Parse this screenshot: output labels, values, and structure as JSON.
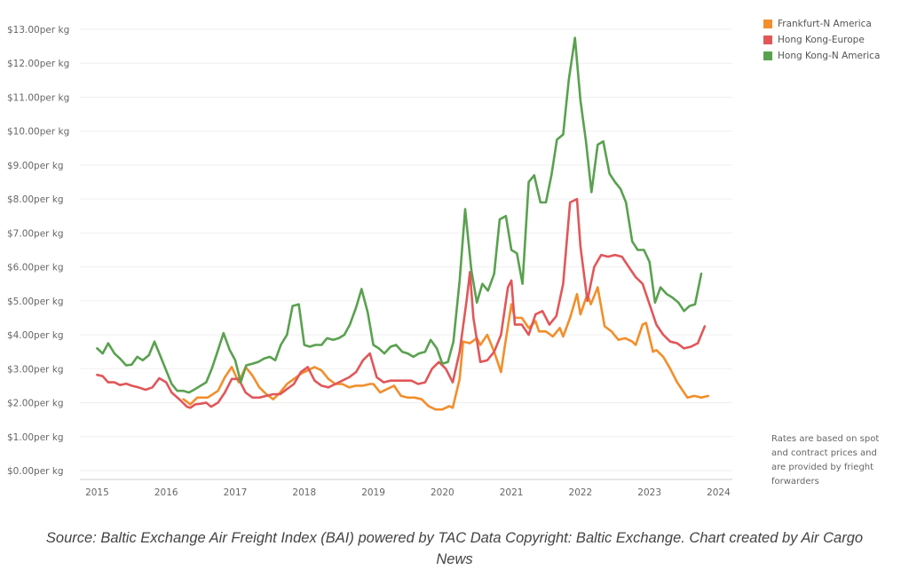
{
  "chart_data": {
    "type": "line",
    "title": "",
    "xlabel": "",
    "ylabel": "",
    "xlim": [
      2014.75,
      2024.2
    ],
    "ylim": [
      0,
      13
    ],
    "grid": true,
    "legend_position": "top-right",
    "x_ticks": [
      "2015",
      "2016",
      "2017",
      "2018",
      "2019",
      "2020",
      "2021",
      "2022",
      "2023",
      "2024"
    ],
    "y_ticks": [
      "$0.00per kg",
      "$1.00per kg",
      "$2.00per kg",
      "$3.00per kg",
      "$4.00per kg",
      "$5.00per kg",
      "$6.00per kg",
      "$7.00per kg",
      "$8.00per kg",
      "$9.00per kg",
      "$10.00per kg",
      "$11.00per kg",
      "$12.00per kg",
      "$13.00per kg"
    ],
    "series": [
      {
        "name": "Frankfurt-N America",
        "color": "#f28e2b",
        "points": [
          [
            2016.25,
            2.1
          ],
          [
            2016.35,
            1.95
          ],
          [
            2016.45,
            2.15
          ],
          [
            2016.6,
            2.15
          ],
          [
            2016.75,
            2.35
          ],
          [
            2016.85,
            2.75
          ],
          [
            2016.95,
            3.05
          ],
          [
            2017.05,
            2.6
          ],
          [
            2017.15,
            3.05
          ],
          [
            2017.25,
            2.8
          ],
          [
            2017.35,
            2.45
          ],
          [
            2017.45,
            2.25
          ],
          [
            2017.55,
            2.1
          ],
          [
            2017.65,
            2.3
          ],
          [
            2017.75,
            2.55
          ],
          [
            2017.85,
            2.7
          ],
          [
            2017.95,
            2.85
          ],
          [
            2018.05,
            2.95
          ],
          [
            2018.15,
            3.05
          ],
          [
            2018.25,
            2.95
          ],
          [
            2018.35,
            2.7
          ],
          [
            2018.45,
            2.55
          ],
          [
            2018.55,
            2.55
          ],
          [
            2018.65,
            2.45
          ],
          [
            2018.75,
            2.5
          ],
          [
            2018.85,
            2.5
          ],
          [
            2018.95,
            2.55
          ],
          [
            2019.0,
            2.55
          ],
          [
            2019.1,
            2.3
          ],
          [
            2019.2,
            2.4
          ],
          [
            2019.3,
            2.5
          ],
          [
            2019.4,
            2.2
          ],
          [
            2019.5,
            2.15
          ],
          [
            2019.6,
            2.15
          ],
          [
            2019.7,
            2.1
          ],
          [
            2019.8,
            1.9
          ],
          [
            2019.9,
            1.8
          ],
          [
            2020.0,
            1.8
          ],
          [
            2020.1,
            1.9
          ],
          [
            2020.15,
            1.85
          ],
          [
            2020.25,
            2.7
          ],
          [
            2020.3,
            3.8
          ],
          [
            2020.4,
            3.75
          ],
          [
            2020.5,
            3.9
          ],
          [
            2020.55,
            3.7
          ],
          [
            2020.65,
            4.0
          ],
          [
            2020.75,
            3.5
          ],
          [
            2020.85,
            2.9
          ],
          [
            2020.9,
            3.6
          ],
          [
            2021.0,
            4.9
          ],
          [
            2021.05,
            4.5
          ],
          [
            2021.15,
            4.5
          ],
          [
            2021.25,
            4.2
          ],
          [
            2021.35,
            4.4
          ],
          [
            2021.4,
            4.1
          ],
          [
            2021.5,
            4.1
          ],
          [
            2021.6,
            3.95
          ],
          [
            2021.7,
            4.2
          ],
          [
            2021.75,
            3.95
          ],
          [
            2021.85,
            4.5
          ],
          [
            2021.95,
            5.2
          ],
          [
            2022.0,
            4.6
          ],
          [
            2022.1,
            5.2
          ],
          [
            2022.15,
            4.9
          ],
          [
            2022.25,
            5.4
          ],
          [
            2022.35,
            4.25
          ],
          [
            2022.45,
            4.1
          ],
          [
            2022.55,
            3.85
          ],
          [
            2022.65,
            3.9
          ],
          [
            2022.75,
            3.8
          ],
          [
            2022.8,
            3.7
          ],
          [
            2022.9,
            4.3
          ],
          [
            2022.95,
            4.35
          ],
          [
            2023.05,
            3.5
          ],
          [
            2023.1,
            3.55
          ],
          [
            2023.2,
            3.35
          ],
          [
            2023.3,
            3.0
          ],
          [
            2023.4,
            2.6
          ],
          [
            2023.5,
            2.3
          ],
          [
            2023.55,
            2.15
          ],
          [
            2023.65,
            2.2
          ],
          [
            2023.75,
            2.15
          ],
          [
            2023.85,
            2.2
          ]
        ]
      },
      {
        "name": "Hong Kong-Europe",
        "color": "#e15759",
        "points": [
          [
            2015.0,
            2.82
          ],
          [
            2015.08,
            2.78
          ],
          [
            2015.16,
            2.6
          ],
          [
            2015.25,
            2.6
          ],
          [
            2015.33,
            2.52
          ],
          [
            2015.42,
            2.56
          ],
          [
            2015.5,
            2.5
          ],
          [
            2015.6,
            2.45
          ],
          [
            2015.7,
            2.38
          ],
          [
            2015.8,
            2.45
          ],
          [
            2015.9,
            2.72
          ],
          [
            2016.0,
            2.6
          ],
          [
            2016.08,
            2.3
          ],
          [
            2016.2,
            2.08
          ],
          [
            2016.3,
            1.88
          ],
          [
            2016.35,
            1.85
          ],
          [
            2016.42,
            1.95
          ],
          [
            2016.5,
            1.97
          ],
          [
            2016.58,
            2.0
          ],
          [
            2016.65,
            1.88
          ],
          [
            2016.75,
            2.0
          ],
          [
            2016.85,
            2.3
          ],
          [
            2016.95,
            2.7
          ],
          [
            2017.05,
            2.7
          ],
          [
            2017.15,
            2.3
          ],
          [
            2017.25,
            2.15
          ],
          [
            2017.35,
            2.15
          ],
          [
            2017.45,
            2.2
          ],
          [
            2017.55,
            2.25
          ],
          [
            2017.65,
            2.25
          ],
          [
            2017.75,
            2.4
          ],
          [
            2017.85,
            2.55
          ],
          [
            2017.95,
            2.9
          ],
          [
            2018.05,
            3.05
          ],
          [
            2018.15,
            2.65
          ],
          [
            2018.25,
            2.5
          ],
          [
            2018.35,
            2.45
          ],
          [
            2018.45,
            2.55
          ],
          [
            2018.55,
            2.65
          ],
          [
            2018.65,
            2.75
          ],
          [
            2018.75,
            2.9
          ],
          [
            2018.85,
            3.25
          ],
          [
            2018.95,
            3.45
          ],
          [
            2019.05,
            2.75
          ],
          [
            2019.15,
            2.6
          ],
          [
            2019.25,
            2.65
          ],
          [
            2019.35,
            2.65
          ],
          [
            2019.45,
            2.65
          ],
          [
            2019.55,
            2.65
          ],
          [
            2019.65,
            2.55
          ],
          [
            2019.75,
            2.6
          ],
          [
            2019.85,
            3.0
          ],
          [
            2019.95,
            3.2
          ],
          [
            2020.05,
            3.0
          ],
          [
            2020.15,
            2.6
          ],
          [
            2020.25,
            3.5
          ],
          [
            2020.35,
            5.0
          ],
          [
            2020.4,
            5.85
          ],
          [
            2020.45,
            4.5
          ],
          [
            2020.55,
            3.2
          ],
          [
            2020.65,
            3.25
          ],
          [
            2020.75,
            3.5
          ],
          [
            2020.85,
            4.0
          ],
          [
            2020.95,
            5.4
          ],
          [
            2021.0,
            5.6
          ],
          [
            2021.05,
            4.3
          ],
          [
            2021.15,
            4.3
          ],
          [
            2021.25,
            4.0
          ],
          [
            2021.35,
            4.6
          ],
          [
            2021.45,
            4.7
          ],
          [
            2021.55,
            4.3
          ],
          [
            2021.65,
            4.55
          ],
          [
            2021.75,
            5.5
          ],
          [
            2021.85,
            7.9
          ],
          [
            2021.95,
            8.0
          ],
          [
            2022.0,
            6.6
          ],
          [
            2022.1,
            5.0
          ],
          [
            2022.2,
            6.0
          ],
          [
            2022.3,
            6.35
          ],
          [
            2022.4,
            6.3
          ],
          [
            2022.5,
            6.35
          ],
          [
            2022.6,
            6.3
          ],
          [
            2022.7,
            6.0
          ],
          [
            2022.8,
            5.7
          ],
          [
            2022.9,
            5.5
          ],
          [
            2023.0,
            4.9
          ],
          [
            2023.1,
            4.3
          ],
          [
            2023.2,
            4.0
          ],
          [
            2023.3,
            3.8
          ],
          [
            2023.4,
            3.75
          ],
          [
            2023.5,
            3.6
          ],
          [
            2023.6,
            3.65
          ],
          [
            2023.7,
            3.75
          ],
          [
            2023.8,
            4.25
          ]
        ]
      },
      {
        "name": "Hong Kong-N America",
        "color": "#59a14f",
        "points": [
          [
            2015.0,
            3.6
          ],
          [
            2015.08,
            3.45
          ],
          [
            2015.16,
            3.75
          ],
          [
            2015.25,
            3.45
          ],
          [
            2015.33,
            3.3
          ],
          [
            2015.42,
            3.1
          ],
          [
            2015.5,
            3.12
          ],
          [
            2015.58,
            3.35
          ],
          [
            2015.66,
            3.25
          ],
          [
            2015.75,
            3.4
          ],
          [
            2015.83,
            3.8
          ],
          [
            2015.92,
            3.35
          ],
          [
            2016.0,
            2.95
          ],
          [
            2016.08,
            2.55
          ],
          [
            2016.16,
            2.35
          ],
          [
            2016.25,
            2.35
          ],
          [
            2016.33,
            2.3
          ],
          [
            2016.42,
            2.4
          ],
          [
            2016.5,
            2.5
          ],
          [
            2016.58,
            2.6
          ],
          [
            2016.66,
            3.0
          ],
          [
            2016.75,
            3.55
          ],
          [
            2016.83,
            4.05
          ],
          [
            2016.92,
            3.55
          ],
          [
            2017.0,
            3.25
          ],
          [
            2017.08,
            2.6
          ],
          [
            2017.16,
            3.1
          ],
          [
            2017.25,
            3.15
          ],
          [
            2017.33,
            3.2
          ],
          [
            2017.42,
            3.3
          ],
          [
            2017.5,
            3.35
          ],
          [
            2017.58,
            3.25
          ],
          [
            2017.66,
            3.7
          ],
          [
            2017.75,
            4.0
          ],
          [
            2017.83,
            4.85
          ],
          [
            2017.92,
            4.9
          ],
          [
            2018.0,
            3.7
          ],
          [
            2018.08,
            3.65
          ],
          [
            2018.16,
            3.7
          ],
          [
            2018.25,
            3.7
          ],
          [
            2018.33,
            3.9
          ],
          [
            2018.42,
            3.85
          ],
          [
            2018.5,
            3.9
          ],
          [
            2018.58,
            4.0
          ],
          [
            2018.66,
            4.3
          ],
          [
            2018.75,
            4.8
          ],
          [
            2018.83,
            5.35
          ],
          [
            2018.92,
            4.65
          ],
          [
            2019.0,
            3.7
          ],
          [
            2019.08,
            3.6
          ],
          [
            2019.16,
            3.45
          ],
          [
            2019.25,
            3.65
          ],
          [
            2019.33,
            3.7
          ],
          [
            2019.42,
            3.5
          ],
          [
            2019.5,
            3.45
          ],
          [
            2019.58,
            3.35
          ],
          [
            2019.66,
            3.45
          ],
          [
            2019.75,
            3.5
          ],
          [
            2019.83,
            3.85
          ],
          [
            2019.92,
            3.6
          ],
          [
            2020.0,
            3.15
          ],
          [
            2020.08,
            3.2
          ],
          [
            2020.16,
            3.8
          ],
          [
            2020.25,
            5.6
          ],
          [
            2020.33,
            7.7
          ],
          [
            2020.42,
            5.9
          ],
          [
            2020.5,
            4.95
          ],
          [
            2020.58,
            5.5
          ],
          [
            2020.66,
            5.3
          ],
          [
            2020.75,
            5.8
          ],
          [
            2020.83,
            7.4
          ],
          [
            2020.92,
            7.5
          ],
          [
            2021.0,
            6.5
          ],
          [
            2021.08,
            6.4
          ],
          [
            2021.16,
            5.5
          ],
          [
            2021.25,
            8.5
          ],
          [
            2021.33,
            8.7
          ],
          [
            2021.42,
            7.9
          ],
          [
            2021.5,
            7.9
          ],
          [
            2021.58,
            8.7
          ],
          [
            2021.66,
            9.75
          ],
          [
            2021.75,
            9.9
          ],
          [
            2021.83,
            11.5
          ],
          [
            2021.92,
            12.75
          ],
          [
            2022.0,
            10.9
          ],
          [
            2022.08,
            9.7
          ],
          [
            2022.16,
            8.2
          ],
          [
            2022.25,
            9.6
          ],
          [
            2022.33,
            9.7
          ],
          [
            2022.42,
            8.75
          ],
          [
            2022.5,
            8.5
          ],
          [
            2022.58,
            8.3
          ],
          [
            2022.66,
            7.9
          ],
          [
            2022.75,
            6.75
          ],
          [
            2022.83,
            6.5
          ],
          [
            2022.92,
            6.5
          ],
          [
            2023.0,
            6.15
          ],
          [
            2023.08,
            4.95
          ],
          [
            2023.16,
            5.4
          ],
          [
            2023.25,
            5.2
          ],
          [
            2023.33,
            5.1
          ],
          [
            2023.42,
            4.95
          ],
          [
            2023.5,
            4.7
          ],
          [
            2023.58,
            4.85
          ],
          [
            2023.66,
            4.9
          ],
          [
            2023.75,
            5.8
          ]
        ]
      }
    ]
  },
  "note": {
    "lines": [
      "Rates are based on spot",
      "and contract prices and",
      "are provided by frieght",
      "forwarders"
    ]
  },
  "caption": {
    "line1": "Source: Baltic Exchange Air Freight Index (BAI) powered by TAC Data Copyright: Baltic Exchange. Chart created by Air Cargo",
    "line2": "News"
  }
}
